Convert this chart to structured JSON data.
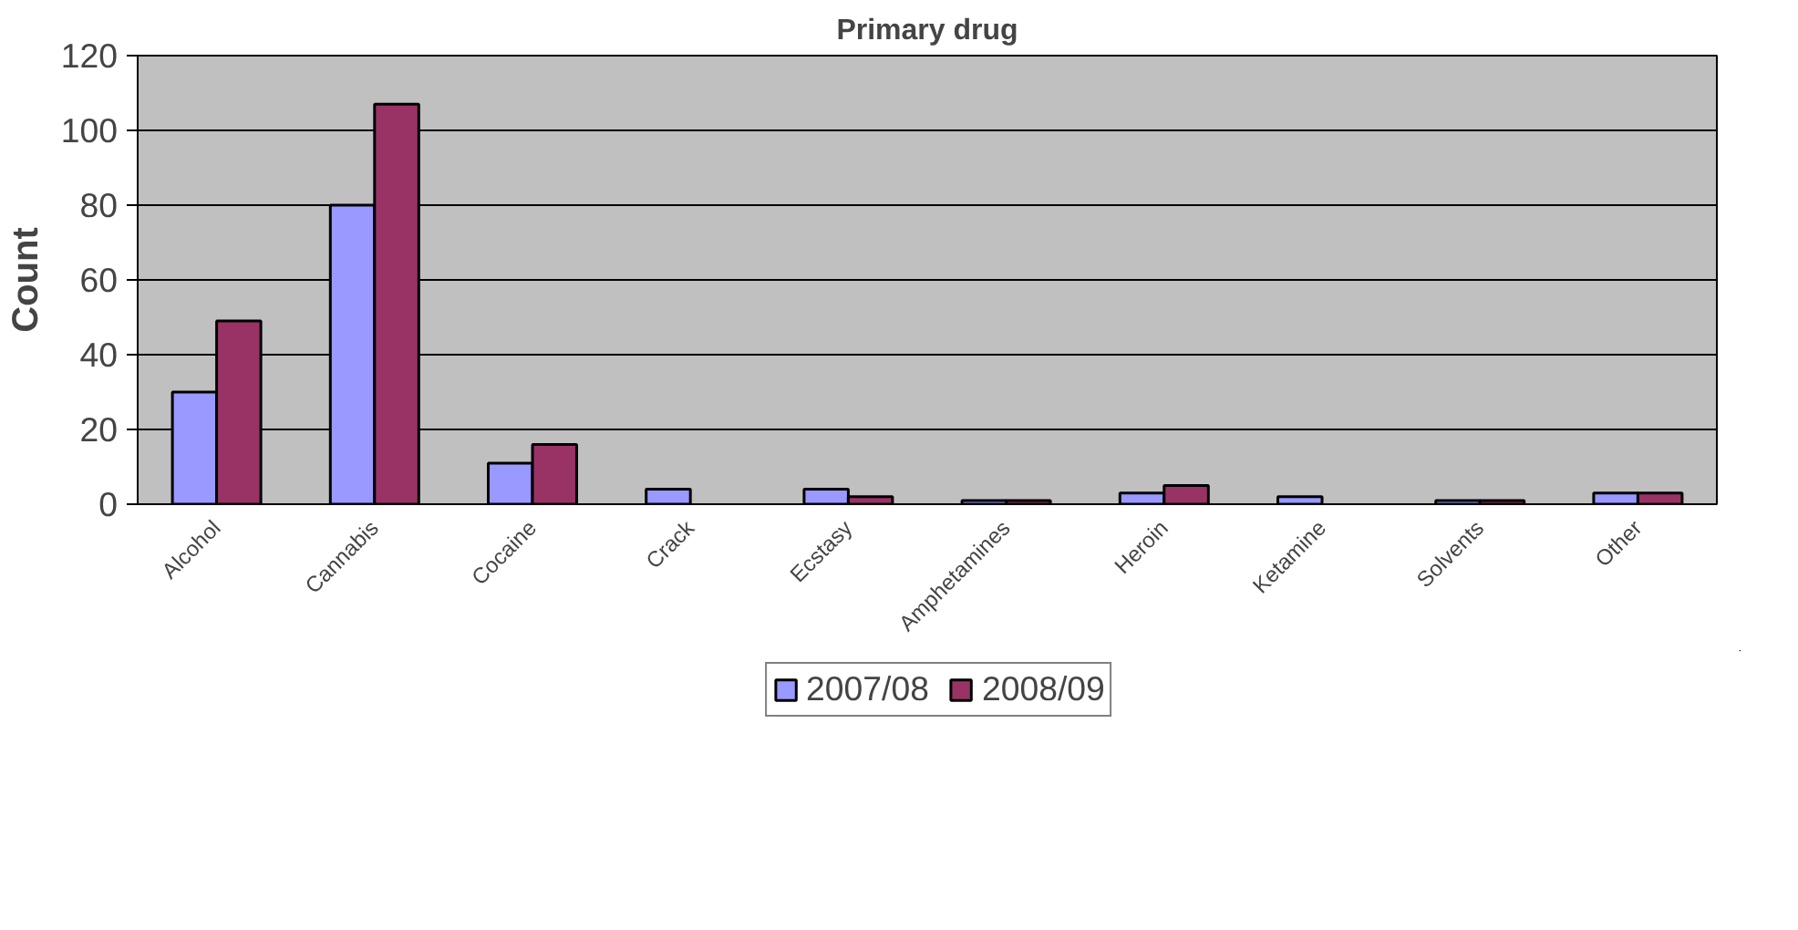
{
  "chart_data": {
    "type": "bar",
    "title": "Primary drug",
    "ylabel": "Count",
    "categories": [
      "Alcohol",
      "Cannabis",
      "Cocaine",
      "Crack",
      "Ecstasy",
      "Amphetamines",
      "Heroin",
      "Ketamine",
      "Solvents",
      "Other"
    ],
    "series": [
      {
        "name": "2007/08",
        "color": "#9999ff",
        "values": [
          30,
          80,
          11,
          4,
          4,
          1,
          3,
          2,
          1,
          3
        ]
      },
      {
        "name": "2008/09",
        "color": "#993366",
        "values": [
          49,
          107,
          16,
          null,
          2,
          1,
          5,
          null,
          1,
          3
        ]
      }
    ],
    "ylim": [
      0,
      120
    ],
    "yticks": [
      0,
      20,
      40,
      60,
      80,
      100,
      120
    ],
    "grid": "y",
    "legend": "bottom"
  }
}
